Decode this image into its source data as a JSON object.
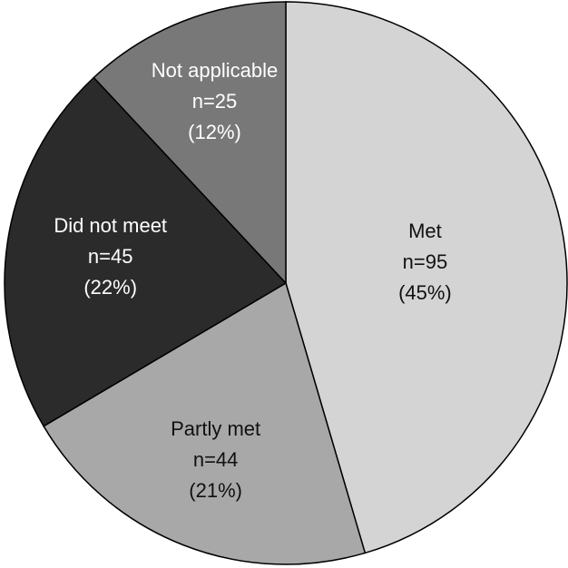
{
  "chart_data": {
    "type": "pie",
    "categories": [
      "Met",
      "Partly met",
      "Did not meet",
      "Not applicable"
    ],
    "values": [
      95,
      44,
      45,
      25
    ],
    "value_labels": [
      "n=95",
      "n=44",
      "n=45",
      "n=25"
    ],
    "percents": [
      45,
      21,
      22,
      12
    ],
    "percent_labels": [
      "(45%)",
      "(21%)",
      "(22%)",
      "(12%)"
    ],
    "colors": [
      "#d4d4d4",
      "#a8a8a8",
      "#2b2b2b",
      "#787878"
    ],
    "label_colors": [
      "#111111",
      "#111111",
      "#ffffff",
      "#ffffff"
    ]
  }
}
